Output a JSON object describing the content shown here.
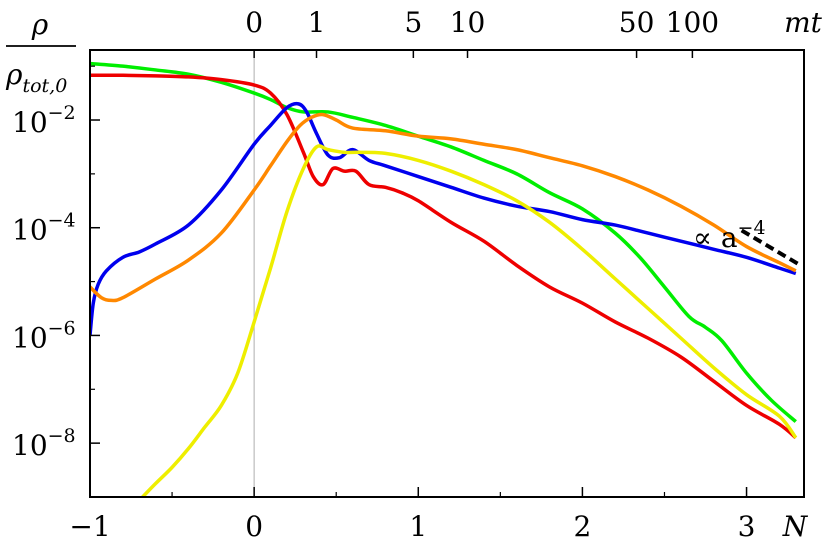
{
  "chart_data": {
    "type": "line",
    "title": "",
    "xlabel": "N",
    "ylabel_num": "ρ",
    "ylabel_den": "ρ",
    "ylabel_den_sub": "tot,0",
    "top_axis_label": "mt",
    "xlim": [
      -1,
      3.35
    ],
    "ylim_log10": [
      -9,
      -0.7
    ],
    "y_scale": "log",
    "grid": false,
    "legend": "none",
    "x_ticks": [
      -1,
      0,
      1,
      2,
      3
    ],
    "x_tick_labels": [
      "−1",
      "0",
      "1",
      "2",
      "3"
    ],
    "y_ticks_exp": [
      -2,
      -4,
      -6,
      -8
    ],
    "y_tick_base": "10",
    "y_tick_exponents": [
      "−2",
      "−4",
      "−6",
      "−8"
    ],
    "top_ticks_N": [
      0,
      0.38,
      0.97,
      1.3,
      2.33,
      2.67
    ],
    "top_tick_labels": [
      "0",
      "1",
      "5",
      "10",
      "50",
      "100"
    ],
    "vertical_line_N": 0,
    "annotation": {
      "prefix": "∝ a",
      "exp": "−4"
    },
    "reference_line": {
      "x": [
        2.97,
        3.33
      ],
      "log10y": [
        -4.05,
        -4.7
      ]
    },
    "series": [
      {
        "color": "#00ee00",
        "x": [
          -1,
          -0.8,
          -0.6,
          -0.4,
          -0.2,
          0,
          0.1,
          0.2,
          0.3,
          0.45,
          0.6,
          0.8,
          1.0,
          1.2,
          1.4,
          1.6,
          1.8,
          2.0,
          2.2,
          2.35,
          2.5,
          2.65,
          2.75,
          2.85,
          3.0,
          3.15,
          3.3
        ],
        "log10y": [
          -0.95,
          -1.0,
          -1.07,
          -1.15,
          -1.3,
          -1.5,
          -1.62,
          -1.77,
          -1.85,
          -1.85,
          -1.95,
          -2.1,
          -2.3,
          -2.5,
          -2.75,
          -3.0,
          -3.35,
          -3.65,
          -4.1,
          -4.55,
          -5.1,
          -5.65,
          -5.85,
          -6.1,
          -6.7,
          -7.2,
          -7.6
        ]
      },
      {
        "color": "#ee0000",
        "x": [
          -1,
          -0.8,
          -0.6,
          -0.4,
          -0.2,
          0,
          0.1,
          0.2,
          0.3,
          0.36,
          0.42,
          0.48,
          0.55,
          0.62,
          0.7,
          0.8,
          0.9,
          1.0,
          1.2,
          1.4,
          1.6,
          1.8,
          2.0,
          2.2,
          2.4,
          2.6,
          2.8,
          3.0,
          3.2,
          3.3
        ],
        "log10y": [
          -1.17,
          -1.17,
          -1.18,
          -1.2,
          -1.25,
          -1.35,
          -1.5,
          -1.9,
          -2.6,
          -3.05,
          -3.2,
          -2.9,
          -2.95,
          -2.95,
          -3.2,
          -3.25,
          -3.35,
          -3.5,
          -3.9,
          -4.25,
          -4.7,
          -5.1,
          -5.4,
          -5.75,
          -6.05,
          -6.4,
          -6.85,
          -7.3,
          -7.65,
          -7.9
        ]
      },
      {
        "color": "#0000ee",
        "x": [
          -1,
          -0.98,
          -0.95,
          -0.9,
          -0.8,
          -0.7,
          -0.6,
          -0.4,
          -0.2,
          0,
          0.1,
          0.2,
          0.27,
          0.32,
          0.38,
          0.45,
          0.52,
          0.6,
          0.7,
          0.8,
          1.0,
          1.2,
          1.4,
          1.6,
          1.8,
          2.0,
          2.2,
          2.4,
          2.6,
          2.8,
          3.0,
          3.2,
          3.3
        ],
        "log10y": [
          -6,
          -5.4,
          -5.05,
          -4.8,
          -4.55,
          -4.45,
          -4.3,
          -3.95,
          -3.3,
          -2.45,
          -2.1,
          -1.77,
          -1.7,
          -1.85,
          -2.25,
          -2.65,
          -2.7,
          -2.55,
          -2.75,
          -2.85,
          -3.05,
          -3.25,
          -3.45,
          -3.6,
          -3.7,
          -3.85,
          -3.95,
          -4.1,
          -4.25,
          -4.4,
          -4.55,
          -4.75,
          -4.85
        ]
      },
      {
        "color": "#ff8800",
        "x": [
          -1,
          -0.93,
          -0.87,
          -0.8,
          -0.6,
          -0.4,
          -0.2,
          0,
          0.1,
          0.2,
          0.28,
          0.35,
          0.42,
          0.5,
          0.6,
          0.8,
          1.0,
          1.2,
          1.4,
          1.6,
          1.8,
          2.0,
          2.2,
          2.4,
          2.6,
          2.8,
          3.0,
          3.2,
          3.3
        ],
        "log10y": [
          -5.1,
          -5.3,
          -5.35,
          -5.3,
          -4.95,
          -4.6,
          -4.1,
          -3.3,
          -2.85,
          -2.4,
          -2.1,
          -1.95,
          -1.9,
          -2.0,
          -2.15,
          -2.2,
          -2.3,
          -2.35,
          -2.45,
          -2.55,
          -2.7,
          -2.85,
          -3.05,
          -3.3,
          -3.6,
          -3.95,
          -4.35,
          -4.65,
          -4.8
        ]
      },
      {
        "color": "#eeee00",
        "x": [
          -0.68,
          -0.6,
          -0.5,
          -0.4,
          -0.3,
          -0.2,
          -0.1,
          0,
          0.1,
          0.2,
          0.3,
          0.38,
          0.45,
          0.55,
          0.65,
          0.8,
          1.0,
          1.2,
          1.4,
          1.6,
          1.8,
          2.0,
          2.2,
          2.4,
          2.6,
          2.8,
          3.0,
          3.2,
          3.3
        ],
        "log10y": [
          -9.0,
          -8.75,
          -8.45,
          -8.1,
          -7.7,
          -7.3,
          -6.7,
          -5.75,
          -4.75,
          -3.7,
          -2.9,
          -2.5,
          -2.55,
          -2.6,
          -2.6,
          -2.62,
          -2.75,
          -2.95,
          -3.2,
          -3.5,
          -3.9,
          -4.4,
          -4.95,
          -5.5,
          -6.05,
          -6.6,
          -7.1,
          -7.5,
          -7.9
        ]
      }
    ]
  }
}
